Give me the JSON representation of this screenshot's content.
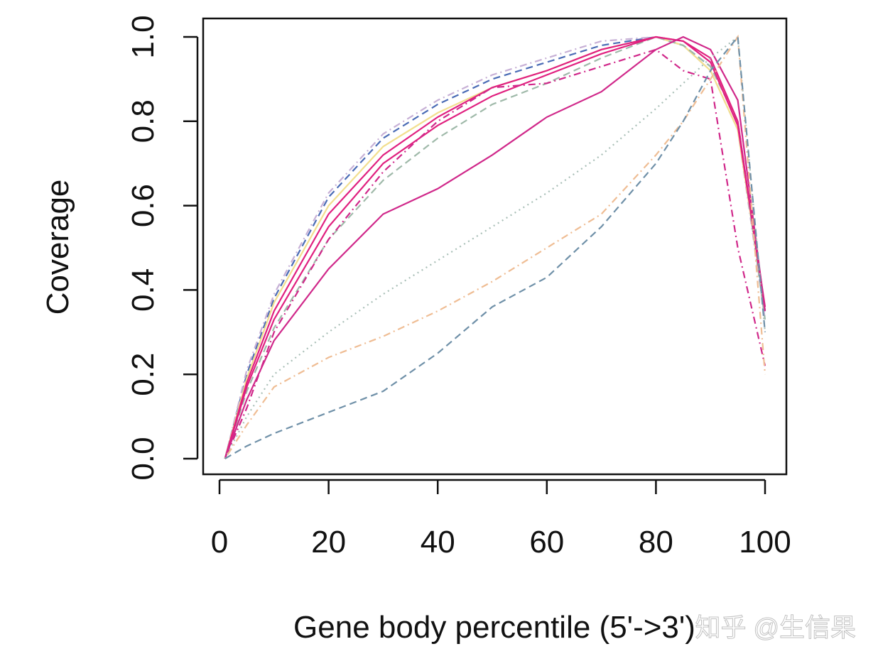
{
  "chart_data": {
    "type": "line",
    "title": "",
    "xlabel": "Gene body percentile (5'->3')",
    "ylabel": "Coverage",
    "xlim": [
      0,
      100
    ],
    "ylim": [
      0,
      1
    ],
    "xticks": [
      "0",
      "20",
      "40",
      "60",
      "80",
      "100"
    ],
    "yticks": [
      "0.0",
      "0.2",
      "0.4",
      "0.6",
      "0.8",
      "1.0"
    ],
    "grid": false,
    "legend": "none",
    "x": [
      1,
      5,
      10,
      20,
      30,
      40,
      50,
      60,
      70,
      80,
      85,
      90,
      95,
      100
    ],
    "series": [
      {
        "color": "#4a6bb5",
        "dash": "dashed",
        "values": [
          0,
          0.2,
          0.38,
          0.62,
          0.76,
          0.84,
          0.9,
          0.94,
          0.98,
          1.0,
          0.98,
          0.93,
          0.8,
          0.35
        ]
      },
      {
        "color": "#c7b0d6",
        "dash": "dotdash",
        "values": [
          0,
          0.21,
          0.39,
          0.63,
          0.77,
          0.85,
          0.91,
          0.95,
          0.99,
          1.0,
          0.98,
          0.92,
          0.78,
          0.33
        ]
      },
      {
        "color": "#f2df8f",
        "dash": "solid",
        "values": [
          0,
          0.19,
          0.37,
          0.6,
          0.74,
          0.82,
          0.88,
          0.92,
          0.97,
          1.0,
          0.98,
          0.92,
          0.78,
          0.35
        ]
      },
      {
        "color": "#9fb9a9",
        "dash": "dashed",
        "values": [
          0,
          0.16,
          0.31,
          0.52,
          0.66,
          0.76,
          0.84,
          0.89,
          0.95,
          1.0,
          0.98,
          0.93,
          0.8,
          0.33
        ]
      },
      {
        "color": "#e0207f",
        "dash": "solid",
        "values": [
          0,
          0.17,
          0.33,
          0.55,
          0.7,
          0.79,
          0.86,
          0.91,
          0.96,
          1.0,
          0.99,
          0.95,
          0.8,
          0.35
        ]
      },
      {
        "color": "#e0207f",
        "dash": "solid",
        "values": [
          0,
          0.18,
          0.35,
          0.58,
          0.72,
          0.81,
          0.88,
          0.92,
          0.97,
          1.0,
          0.99,
          0.94,
          0.79,
          0.36
        ]
      },
      {
        "color": "#d0288a",
        "dash": "dotdash",
        "values": [
          0,
          0.12,
          0.3,
          0.52,
          0.68,
          0.8,
          0.88,
          0.89,
          0.93,
          0.97,
          0.92,
          0.9,
          0.5,
          0.22
        ]
      },
      {
        "color": "#d0288a",
        "dash": "solid",
        "values": [
          0,
          0.14,
          0.28,
          0.45,
          0.58,
          0.64,
          0.72,
          0.81,
          0.87,
          0.97,
          1.0,
          0.97,
          0.85,
          0.35
        ]
      },
      {
        "color": "#a9bfb7",
        "dash": "dotted",
        "values": [
          0,
          0.1,
          0.2,
          0.3,
          0.39,
          0.47,
          0.55,
          0.63,
          0.72,
          0.83,
          0.89,
          0.95,
          1.0,
          0.3
        ]
      },
      {
        "color": "#efbd94",
        "dash": "dotdash",
        "values": [
          0,
          0.08,
          0.17,
          0.24,
          0.29,
          0.35,
          0.42,
          0.5,
          0.58,
          0.72,
          0.8,
          0.9,
          1.0,
          0.2
        ]
      },
      {
        "color": "#6f90a8",
        "dash": "dashed",
        "values": [
          0,
          0.03,
          0.06,
          0.11,
          0.16,
          0.25,
          0.36,
          0.43,
          0.55,
          0.7,
          0.8,
          0.92,
          1.0,
          0.3
        ]
      }
    ]
  },
  "watermark": "知乎 @生信果"
}
